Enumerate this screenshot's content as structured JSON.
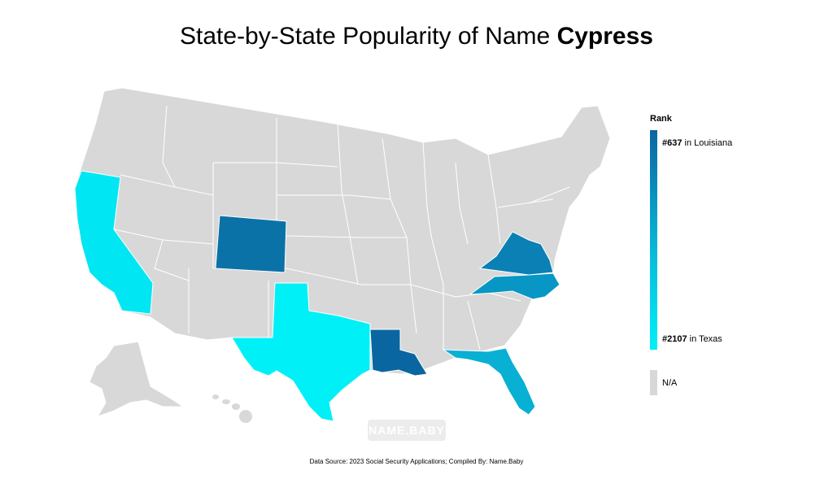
{
  "title": {
    "prefix": "State-by-State Popularity of Name ",
    "name": "Cypress"
  },
  "legend": {
    "title": "Rank",
    "top_rank": "#637",
    "top_state_text": " in Louisiana",
    "bottom_rank": "#2107",
    "bottom_state_text": " in Texas",
    "na_label": "N/A"
  },
  "watermark": "NAME.BABY",
  "source": "Data Source: 2023 Social Security Applications; Compiled By: Name.Baby",
  "colors": {
    "no_data": "#d8d8d8",
    "rank_high": "#0a66a0",
    "rank_low": "#00f0f7",
    "border": "#ffffff"
  },
  "regions": [
    {
      "state": "Louisiana",
      "shade": "#0a66a0"
    },
    {
      "state": "Wyoming",
      "shade": "#0b72a8"
    },
    {
      "state": "Virginia",
      "shade": "#0a80b5"
    },
    {
      "state": "North Carolina",
      "shade": "#0897c4"
    },
    {
      "state": "Florida",
      "shade": "#08b0d3"
    },
    {
      "state": "California",
      "shade": "#00e6f2"
    },
    {
      "state": "Texas",
      "shade": "#00f0f7"
    }
  ]
}
